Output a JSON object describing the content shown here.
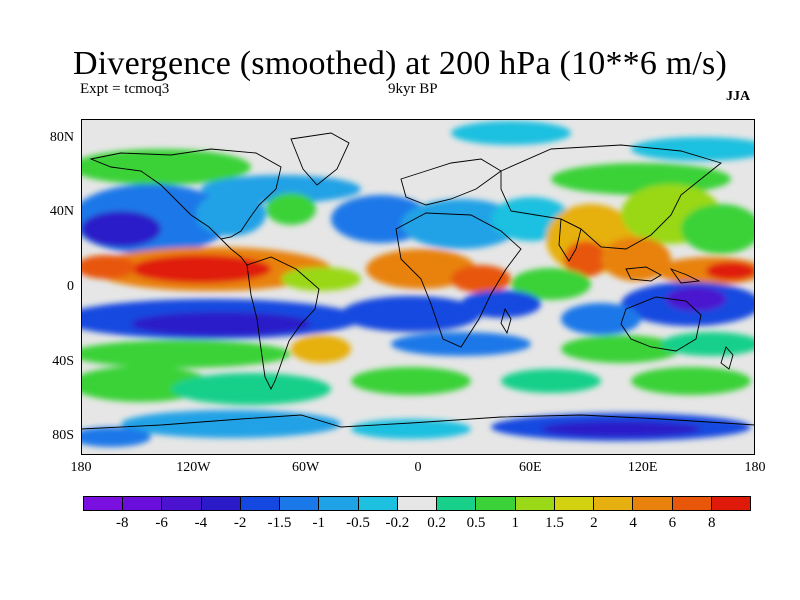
{
  "title": "Divergence (smoothed) at 200 hPa (10**6 m/s)",
  "experiment": "Expt = tcmoq3",
  "period": "9kyr BP",
  "season": "JJA",
  "lat_labels": [
    "80N",
    "40N",
    "0",
    "40S",
    "80S"
  ],
  "lat_values": [
    80,
    40,
    0,
    -40,
    -80
  ],
  "lon_labels": [
    "180",
    "120W",
    "60W",
    "0",
    "60E",
    "120E",
    "180"
  ],
  "lon_values": [
    -180,
    -120,
    -60,
    0,
    60,
    120,
    180
  ],
  "colorbar": {
    "colors": [
      "#7a10e0",
      "#6a0edc",
      "#4b12cf",
      "#2a1ac8",
      "#1548e0",
      "#1a78e8",
      "#20a2e6",
      "#1ec0e0",
      "#e6e6e6",
      "#18d08a",
      "#3ad238",
      "#9ad818",
      "#d2d210",
      "#e6b010",
      "#e8820c",
      "#e8560a",
      "#e01a0a"
    ],
    "labels": [
      "-8",
      "-6",
      "-4",
      "-2",
      "-1.5",
      "-1",
      "-0.5",
      "-0.2",
      "0.2",
      "0.5",
      "1",
      "1.5",
      "2",
      "4",
      "6",
      "8"
    ]
  },
  "colors": {
    "neutral": "#e6e6e6",
    "coast": "#000000"
  }
}
